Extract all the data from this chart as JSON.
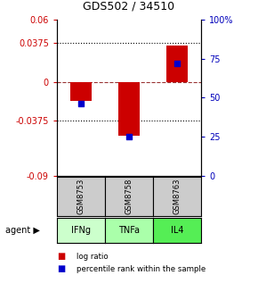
{
  "title": "GDS502 / 34510",
  "samples": [
    "GSM8753",
    "GSM8758",
    "GSM8763"
  ],
  "agents": [
    "IFNg",
    "TNFa",
    "IL4"
  ],
  "log_ratios": [
    -0.018,
    -0.052,
    0.035
  ],
  "percentile_ranks": [
    0.46,
    0.25,
    0.72
  ],
  "ylim_left": [
    -0.09,
    0.06
  ],
  "ylim_right": [
    0.0,
    1.0
  ],
  "yticks_left": [
    -0.09,
    -0.0375,
    0,
    0.0375,
    0.06
  ],
  "ytick_labels_left": [
    "-0.09",
    "-0.0375",
    "0",
    "0.0375",
    "0.06"
  ],
  "yticks_right": [
    0.0,
    0.25,
    0.5,
    0.75,
    1.0
  ],
  "ytick_labels_right": [
    "0",
    "25",
    "50",
    "75",
    "100%"
  ],
  "bar_color": "#cc0000",
  "dot_color": "#0000cc",
  "agent_colors": [
    "#ccffcc",
    "#aaffaa",
    "#55ee55"
  ],
  "sample_bg": "#cccccc",
  "left_axis_color": "#cc0000",
  "right_axis_color": "#0000bb",
  "dotted_lines": [
    -0.0375,
    0.0375
  ],
  "bar_width": 0.45,
  "dot_size": 22,
  "legend_items": [
    "log ratio",
    "percentile rank within the sample"
  ],
  "legend_colors": [
    "#cc0000",
    "#0000cc"
  ]
}
